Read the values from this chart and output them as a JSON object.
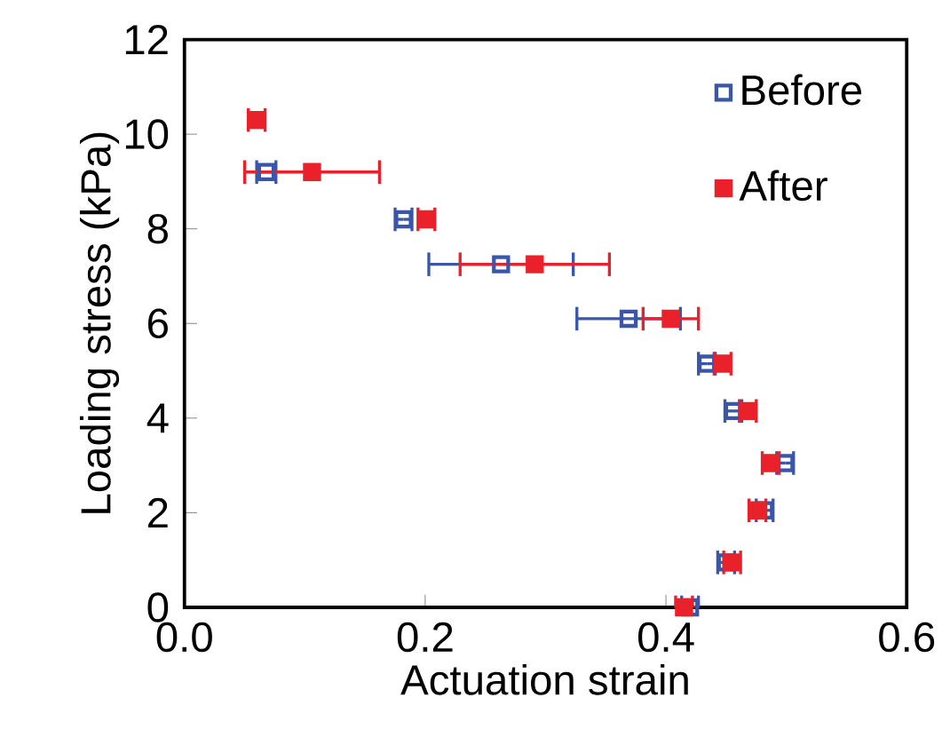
{
  "chart_data": {
    "type": "scatter",
    "xlabel": "Actuation strain",
    "ylabel": "Loading stress (kPa)",
    "xlim": [
      0,
      0.6
    ],
    "ylim": [
      0,
      12
    ],
    "xticks": [
      {
        "value": 0,
        "label": "0.0"
      },
      {
        "value": 0.2,
        "label": "0.2"
      },
      {
        "value": 0.4,
        "label": "0.4"
      },
      {
        "value": 0.6,
        "label": "0.6"
      }
    ],
    "yticks": [
      0,
      2,
      4,
      6,
      8,
      10,
      12
    ],
    "legend": "top right",
    "marker": "square",
    "grid": false,
    "series": [
      {
        "name": "Before",
        "color": "#3a56a8",
        "x": [
          0.42,
          0.45,
          0.482,
          0.499,
          0.456,
          0.434,
          0.369,
          0.263,
          0.182,
          0.068
        ],
        "values": [
          0,
          0.95,
          2.05,
          3.05,
          4.15,
          5.15,
          6.1,
          7.25,
          8.2,
          9.2
        ],
        "xerrors": [
          0.007,
          0.007,
          0.007,
          0.007,
          0.007,
          0.007,
          0.043,
          0.06,
          0.007,
          0.008
        ]
      },
      {
        "name": "After",
        "color": "#e8212a",
        "x": [
          0.415,
          0.455,
          0.476,
          0.487,
          0.468,
          0.447,
          0.404,
          0.291,
          0.201,
          0.106,
          0.06
        ],
        "values": [
          0,
          0.95,
          2.05,
          3.05,
          4.15,
          5.15,
          6.1,
          7.25,
          8.2,
          9.2,
          10.3
        ],
        "xerrors": [
          0.007,
          0.007,
          0.007,
          0.007,
          0.007,
          0.007,
          0.023,
          0.062,
          0.007,
          0.056,
          0.007
        ]
      }
    ]
  }
}
